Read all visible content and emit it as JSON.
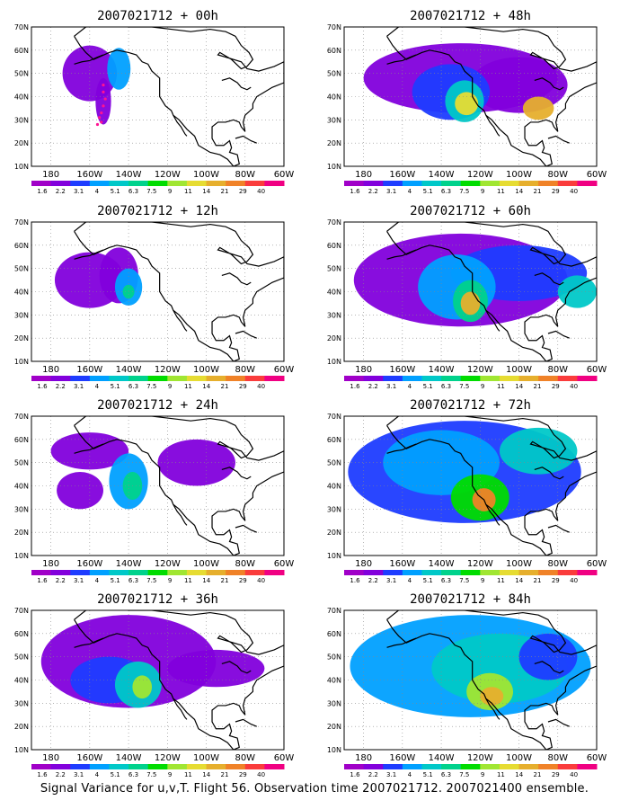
{
  "caption": "Signal Variance for u,v,T. Flight 56. Observation time 2007021712. 2007021400 ensemble.",
  "lat_labels": [
    "70N",
    "60N",
    "50N",
    "40N",
    "30N",
    "20N",
    "10N"
  ],
  "lon_labels": [
    "180",
    "160W",
    "140W",
    "120W",
    "100W",
    "80W",
    "60W"
  ],
  "colorbar": {
    "labels": [
      "1.6",
      "2.2",
      "3.1",
      "4",
      "5.1",
      "6.3",
      "7.5",
      "9",
      "11",
      "14",
      "21",
      "29",
      "40"
    ],
    "colors": [
      "#a000c8",
      "#8200dc",
      "#1e3cff",
      "#00a0ff",
      "#00c8c8",
      "#00d28c",
      "#00dc00",
      "#a0e632",
      "#e6dc32",
      "#e6af2d",
      "#f08228",
      "#fa3c3c",
      "#f00082"
    ]
  },
  "panels": [
    {
      "title": "2007021712 + 00h",
      "blobs": [
        {
          "lon": -160,
          "lat": 50,
          "rlon": 14,
          "rlat": 12,
          "level": 1
        },
        {
          "lon": -145,
          "lat": 52,
          "rlon": 6,
          "rlat": 9,
          "level": 3
        },
        {
          "lon": -153,
          "lat": 38,
          "rlon": 4,
          "rlat": 10,
          "level": 1
        }
      ],
      "markers": [
        {
          "lon": -153,
          "lat": 45
        },
        {
          "lon": -153,
          "lat": 42
        },
        {
          "lon": -152,
          "lat": 39
        },
        {
          "lon": -153,
          "lat": 36
        },
        {
          "lon": -154,
          "lat": 33
        },
        {
          "lon": -155,
          "lat": 31
        },
        {
          "lon": -154,
          "lat": 29
        },
        {
          "lon": -156,
          "lat": 28
        }
      ]
    },
    {
      "title": "2007021712 + 48h",
      "blobs": [
        {
          "lon": -130,
          "lat": 48,
          "rlon": 50,
          "rlat": 15,
          "level": 1
        },
        {
          "lon": -100,
          "lat": 45,
          "rlon": 25,
          "rlat": 12,
          "level": 1
        },
        {
          "lon": -135,
          "lat": 42,
          "rlon": 20,
          "rlat": 12,
          "level": 2
        },
        {
          "lon": -128,
          "lat": 38,
          "rlon": 10,
          "rlat": 9,
          "level": 4
        },
        {
          "lon": -127,
          "lat": 37,
          "rlon": 6,
          "rlat": 5,
          "level": 8
        },
        {
          "lon": -90,
          "lat": 35,
          "rlon": 8,
          "rlat": 5,
          "level": 9
        }
      ]
    },
    {
      "title": "2007021712 + 12h",
      "blobs": [
        {
          "lon": -160,
          "lat": 45,
          "rlon": 18,
          "rlat": 12,
          "level": 1
        },
        {
          "lon": -145,
          "lat": 47,
          "rlon": 10,
          "rlat": 12,
          "level": 1
        },
        {
          "lon": -140,
          "lat": 42,
          "rlon": 7,
          "rlat": 8,
          "level": 3
        },
        {
          "lon": -140,
          "lat": 40,
          "rlon": 3,
          "rlat": 3,
          "level": 5
        }
      ]
    },
    {
      "title": "2007021712 + 60h",
      "blobs": [
        {
          "lon": -130,
          "lat": 45,
          "rlon": 55,
          "rlat": 20,
          "level": 1
        },
        {
          "lon": -100,
          "lat": 48,
          "rlon": 35,
          "rlat": 12,
          "level": 2
        },
        {
          "lon": -132,
          "lat": 42,
          "rlon": 20,
          "rlat": 14,
          "level": 3
        },
        {
          "lon": -125,
          "lat": 36,
          "rlon": 9,
          "rlat": 9,
          "level": 5
        },
        {
          "lon": -125,
          "lat": 35,
          "rlon": 5,
          "rlat": 5,
          "level": 9
        },
        {
          "lon": -70,
          "lat": 40,
          "rlon": 10,
          "rlat": 7,
          "level": 4
        }
      ]
    },
    {
      "title": "2007021712 + 24h",
      "blobs": [
        {
          "lon": -160,
          "lat": 55,
          "rlon": 20,
          "rlat": 8,
          "level": 1
        },
        {
          "lon": -165,
          "lat": 38,
          "rlon": 12,
          "rlat": 8,
          "level": 1
        },
        {
          "lon": -140,
          "lat": 42,
          "rlon": 10,
          "rlat": 12,
          "level": 3
        },
        {
          "lon": -138,
          "lat": 40,
          "rlon": 5,
          "rlat": 6,
          "level": 5
        },
        {
          "lon": -105,
          "lat": 50,
          "rlon": 20,
          "rlat": 10,
          "level": 1
        }
      ]
    },
    {
      "title": "2007021712 + 72h",
      "blobs": [
        {
          "lon": -128,
          "lat": 46,
          "rlon": 60,
          "rlat": 22,
          "level": 2
        },
        {
          "lon": -140,
          "lat": 50,
          "rlon": 30,
          "rlat": 14,
          "level": 3
        },
        {
          "lon": -120,
          "lat": 35,
          "rlon": 15,
          "rlat": 10,
          "level": 6
        },
        {
          "lon": -118,
          "lat": 34,
          "rlon": 6,
          "rlat": 5,
          "level": 10
        },
        {
          "lon": -90,
          "lat": 55,
          "rlon": 20,
          "rlat": 10,
          "level": 4
        }
      ]
    },
    {
      "title": "2007021712 + 36h",
      "blobs": [
        {
          "lon": -140,
          "lat": 48,
          "rlon": 45,
          "rlat": 20,
          "level": 1
        },
        {
          "lon": -150,
          "lat": 40,
          "rlon": 20,
          "rlat": 10,
          "level": 2
        },
        {
          "lon": -135,
          "lat": 38,
          "rlon": 12,
          "rlat": 10,
          "level": 4
        },
        {
          "lon": -133,
          "lat": 37,
          "rlon": 5,
          "rlat": 5,
          "level": 7
        },
        {
          "lon": -95,
          "lat": 45,
          "rlon": 25,
          "rlat": 8,
          "level": 1
        }
      ]
    },
    {
      "title": "2007021712 + 84h",
      "blobs": [
        {
          "lon": -125,
          "lat": 46,
          "rlon": 62,
          "rlat": 22,
          "level": 3
        },
        {
          "lon": -110,
          "lat": 45,
          "rlon": 35,
          "rlat": 15,
          "level": 4
        },
        {
          "lon": -115,
          "lat": 35,
          "rlon": 12,
          "rlat": 8,
          "level": 7
        },
        {
          "lon": -114,
          "lat": 33,
          "rlon": 6,
          "rlat": 4,
          "level": 9
        },
        {
          "lon": -85,
          "lat": 50,
          "rlon": 15,
          "rlat": 10,
          "level": 2
        }
      ]
    }
  ]
}
